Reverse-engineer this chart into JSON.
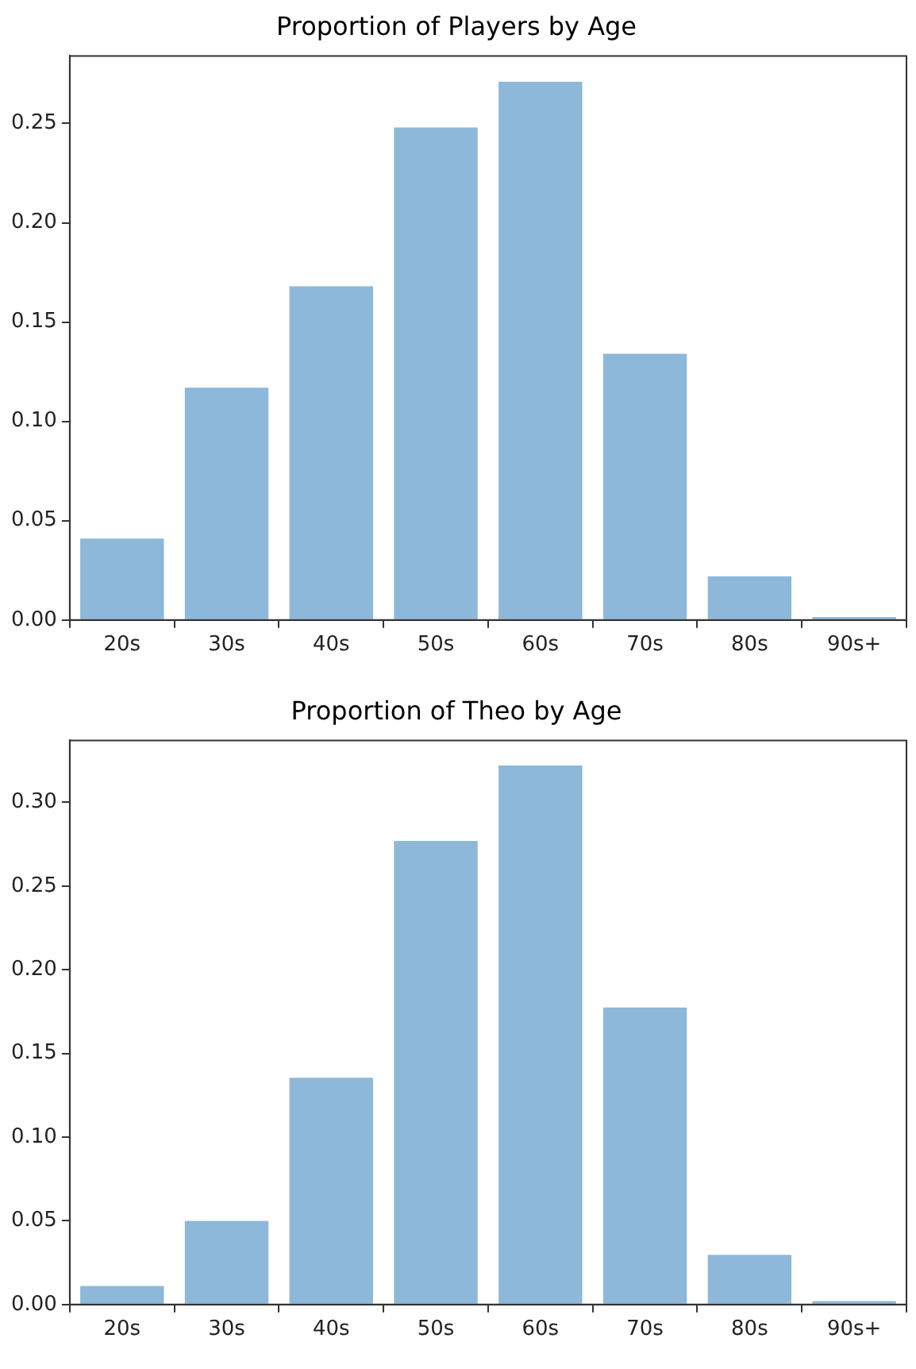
{
  "chart_data": [
    {
      "type": "bar",
      "title": "Proportion of Players by Age",
      "categories": [
        "20s",
        "30s",
        "40s",
        "50s",
        "60s",
        "70s",
        "80s",
        "90s+"
      ],
      "values": [
        0.041,
        0.117,
        0.168,
        0.248,
        0.271,
        0.134,
        0.022,
        0.0015
      ],
      "color": "#8db8d9",
      "ylim": [
        0,
        0.284
      ],
      "yticks": [
        {
          "value": 0,
          "label": "0.00"
        },
        0.05,
        {
          "value": 0.1,
          "label": "0.10"
        },
        0.15,
        {
          "value": 0.2,
          "label": "0.20"
        },
        0.25
      ],
      "grid": false,
      "legend": false
    },
    {
      "type": "bar",
      "title": "Proportion of Theo by Age",
      "categories": [
        "20s",
        "30s",
        "40s",
        "50s",
        "60s",
        "70s",
        "80s",
        "90s+"
      ],
      "values": [
        0.011,
        0.05,
        0.1355,
        0.277,
        0.322,
        0.1775,
        0.0297,
        0.002
      ],
      "color": "#8db8d9",
      "ylim": [
        0,
        0.337
      ],
      "yticks": [
        {
          "value": 0,
          "label": "0.00"
        },
        0.05,
        {
          "value": 0.1,
          "label": "0.10"
        },
        0.15,
        {
          "value": 0.2,
          "label": "0.20"
        },
        0.25,
        {
          "value": 0.3,
          "label": "0.30"
        }
      ],
      "grid": false,
      "legend": false
    }
  ]
}
